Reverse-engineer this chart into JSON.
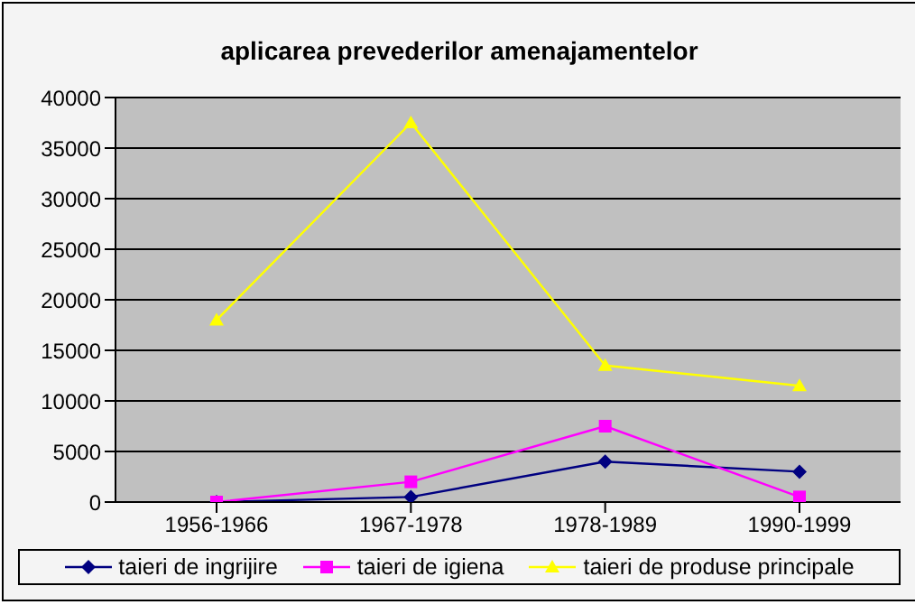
{
  "chart_data": {
    "type": "line",
    "title": "aplicarea prevederilor amenajamentelor",
    "categories": [
      "1956-1966",
      "1967-1978",
      "1978-1989",
      "1990-1999"
    ],
    "series": [
      {
        "name": "taieri de ingrijire",
        "color": "#000080",
        "marker": "diamond",
        "values": [
          0,
          500,
          4000,
          3000
        ]
      },
      {
        "name": "taieri de igiena",
        "color": "#ff00ff",
        "marker": "square",
        "values": [
          0,
          2000,
          7500,
          500
        ]
      },
      {
        "name": "taieri de produse principale",
        "color": "#ffff00",
        "marker": "triangle",
        "values": [
          18000,
          37500,
          13500,
          11500
        ]
      }
    ],
    "ylim": [
      0,
      40000
    ],
    "yticks": [
      0,
      5000,
      10000,
      15000,
      20000,
      25000,
      30000,
      35000,
      40000
    ],
    "grid": "y",
    "legend": "bottom"
  }
}
